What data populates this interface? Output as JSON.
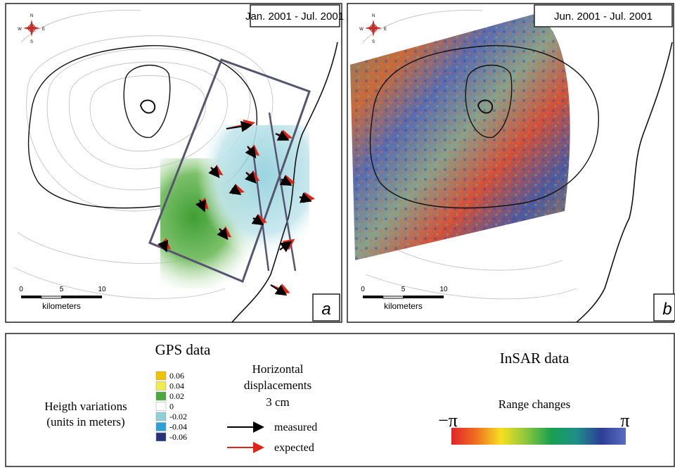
{
  "panels": [
    {
      "period": "Jan. 2001 - Jul. 2001",
      "letter": "a",
      "scale_ticks": [
        "0",
        "5",
        "10"
      ],
      "scale_unit": "kilometers"
    },
    {
      "period": "Jun. 2001 - Jul. 2001",
      "letter": "b",
      "scale_ticks": [
        "0",
        "5",
        "10"
      ],
      "scale_unit": "kilometers"
    }
  ],
  "compass": {
    "n": "N",
    "e": "E",
    "s": "S",
    "w": "W"
  },
  "legend": {
    "gps": {
      "title": "GPS data",
      "height_title": [
        "Heigth variations",
        "(units in meters)"
      ],
      "height_scale": [
        {
          "label": "0.06",
          "color": "#f2c200"
        },
        {
          "label": "0.04",
          "color": "#f0ec50"
        },
        {
          "label": "0.02",
          "color": "#4aa83c"
        },
        {
          "label": "0",
          "color": "#ffffff"
        },
        {
          "label": "-0.02",
          "color": "#8fcfd6"
        },
        {
          "label": "-0.04",
          "color": "#2ea0d8"
        },
        {
          "label": "-0.06",
          "color": "#27327f"
        }
      ],
      "displacement_title": [
        "Horizontal",
        "displacements",
        "3 cm"
      ],
      "measured": {
        "label": "measured",
        "color": "#000000"
      },
      "expected": {
        "label": "expected",
        "color": "#e02418"
      }
    },
    "insar": {
      "title": "InSAR data",
      "range_title": "Range changes",
      "min_label": "−π",
      "max_label": "π",
      "gradient": [
        "#e0242a",
        "#f07020",
        "#f6e020",
        "#8cc63e",
        "#18a050",
        "#1e9088",
        "#2c3e94",
        "#5a6cc0"
      ]
    }
  }
}
